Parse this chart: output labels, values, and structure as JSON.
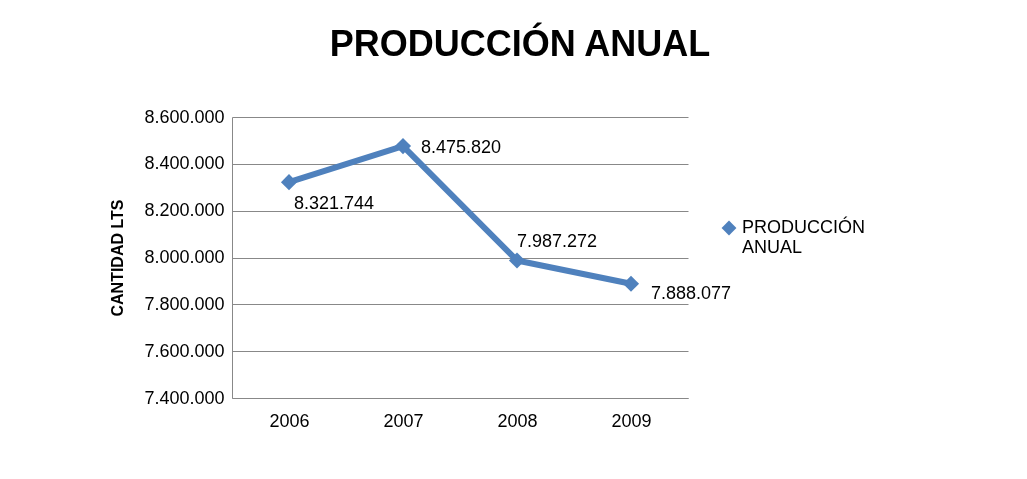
{
  "chart_data": {
    "type": "line",
    "title": "PRODUCCIÓN ANUAL",
    "ylabel": "CANTIDAD LTS",
    "categories": [
      "2006",
      "2007",
      "2008",
      "2009"
    ],
    "series": [
      {
        "name": "PRODUCCIÓN ANUAL",
        "color": "#4f81bd",
        "values": [
          8321744,
          8475820,
          7987272,
          7888077
        ],
        "value_labels": [
          "8.321.744",
          "8.475.820",
          "7.987.272",
          "7.888.077"
        ]
      }
    ],
    "ylim": [
      7400000,
      8600000
    ],
    "yticks": [
      {
        "value": 7400000,
        "label": "7.400.000"
      },
      {
        "value": 7600000,
        "label": "7.600.000"
      },
      {
        "value": 7800000,
        "label": "7.800.000"
      },
      {
        "value": 8000000,
        "label": "8.000.000"
      },
      {
        "value": 8200000,
        "label": "8.200.000"
      },
      {
        "value": 8400000,
        "label": "8.400.000"
      },
      {
        "value": 8600000,
        "label": "8.600.000"
      }
    ],
    "grid": "y",
    "legend": "right",
    "marker": "diamond",
    "line_style": "solid"
  }
}
